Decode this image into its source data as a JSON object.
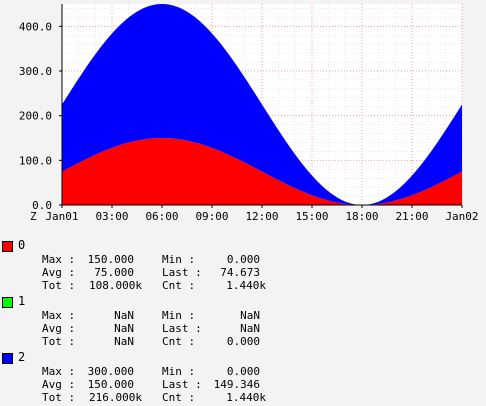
{
  "chart_data": {
    "type": "area",
    "x_tick_labels": [
      "Jan01",
      "03:00",
      "06:00",
      "09:00",
      "12:00",
      "15:00",
      "18:00",
      "21:00",
      "Jan02"
    ],
    "axis_corner_label": "Z",
    "x_start": 0,
    "x_end": 24,
    "x_tick_hours": [
      0,
      3,
      6,
      9,
      12,
      15,
      18,
      21,
      24
    ],
    "y_ticks": [
      0,
      100,
      200,
      300,
      400
    ],
    "y_tick_labels": [
      "0.0",
      "100.0",
      "200.0",
      "300.0",
      "400.0"
    ],
    "ylim": [
      0,
      450
    ],
    "stacked": true,
    "grid": true,
    "series": [
      {
        "name": "0",
        "color": "#ff0000",
        "amplitude": 75,
        "offset": 75,
        "peak_hour": 6
      },
      {
        "name": "1",
        "color": "#00ff00",
        "amplitude": 0,
        "offset": 0,
        "peak_hour": 6
      },
      {
        "name": "2",
        "color": "#0000ff",
        "amplitude": 150,
        "offset": 150,
        "peak_hour": 6
      }
    ]
  },
  "legend": [
    {
      "name": "0",
      "color": "#ff0000",
      "max_label": "Max :",
      "max": "150.000",
      "min_label": "Min :",
      "min": "0.000",
      "avg_label": "Avg :",
      "avg": "75.000",
      "last_label": "Last :",
      "last": "74.673",
      "tot_label": "Tot :",
      "tot": "108.000k",
      "cnt_label": "Cnt :",
      "cnt": "1.440k"
    },
    {
      "name": "1",
      "color": "#00ff00",
      "max_label": "Max :",
      "max": "NaN",
      "min_label": "Min :",
      "min": "NaN",
      "avg_label": "Avg :",
      "avg": "NaN",
      "last_label": "Last :",
      "last": "NaN",
      "tot_label": "Tot :",
      "tot": "NaN",
      "cnt_label": "Cnt :",
      "cnt": "0.000"
    },
    {
      "name": "2",
      "color": "#0000ff",
      "max_label": "Max :",
      "max": "300.000",
      "min_label": "Min :",
      "min": "0.000",
      "avg_label": "Avg :",
      "avg": "150.000",
      "last_label": "Last :",
      "last": "149.346",
      "tot_label": "Tot :",
      "tot": "216.000k",
      "cnt_label": "Cnt :",
      "cnt": "1.440k"
    }
  ]
}
